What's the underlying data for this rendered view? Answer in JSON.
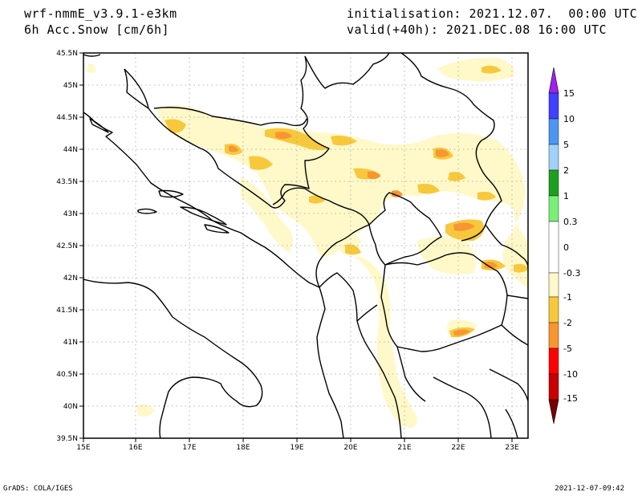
{
  "header": {
    "model": "wrf-nmmE_v3.9.1-e3km",
    "field": "6h Acc.Snow [cm/6h]",
    "init": "initialisation: 2021.12.07.  00:00 UTC",
    "valid": "valid(+40h): 2021.DEC.08 16:00 UTC"
  },
  "footer": {
    "credit": "GrADS: COLA/IGES",
    "timestamp": "2021-12-07-09:42"
  },
  "map": {
    "lon_labels": [
      "15E",
      "16E",
      "17E",
      "18E",
      "19E",
      "20E",
      "21E",
      "22E",
      "23E"
    ],
    "lat_labels": [
      "45.5N",
      "45N",
      "44.5N",
      "44N",
      "43.5N",
      "43N",
      "42.5N",
      "42N",
      "41.5N",
      "41N",
      "40.5N",
      "40N",
      "39.5N"
    ]
  },
  "colorbar": {
    "labels": [
      "15",
      "10",
      "5",
      "2",
      "1",
      "0.3",
      "0",
      "-0.3",
      "-1",
      "-2",
      "-5",
      "-10",
      "-15"
    ],
    "colors": [
      "#a020f0",
      "#4040ff",
      "#4c96f0",
      "#a0d2f8",
      "#1ea01e",
      "#78f078",
      "#ffffff",
      "#fff8c8",
      "#f8c83c",
      "#f89632",
      "#ff0000",
      "#c80000",
      "#780000"
    ]
  },
  "colors": {
    "snow_light": "#fff8c8",
    "snow_moderate": "#f8c83c",
    "snow_heavy": "#f89632"
  }
}
